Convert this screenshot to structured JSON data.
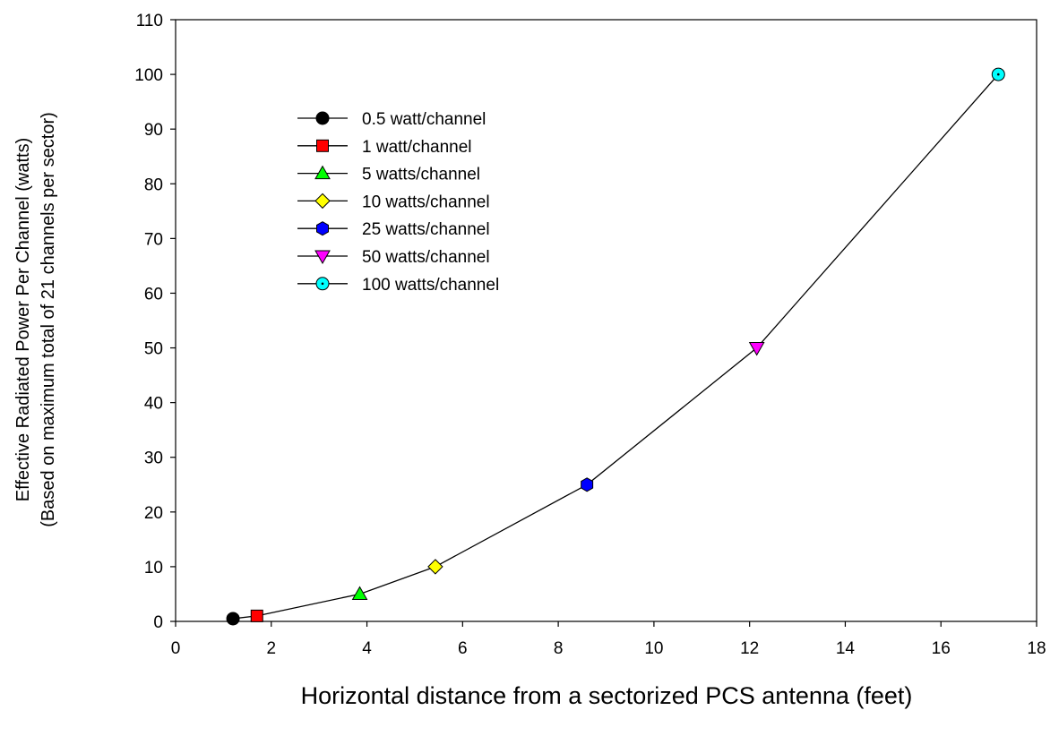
{
  "chart_data": {
    "type": "line",
    "title": "",
    "xlabel": "Horizontal distance from a sectorized PCS antenna (feet)",
    "ylabel": [
      "Effective Radiated Power Per Channel (watts)",
      "(Based on maximum total of 21 channels per sector)"
    ],
    "xlim": [
      0,
      18
    ],
    "ylim": [
      0,
      110
    ],
    "xticks": [
      0,
      2,
      4,
      6,
      8,
      10,
      12,
      14,
      16,
      18
    ],
    "yticks": [
      0,
      10,
      20,
      30,
      40,
      50,
      60,
      70,
      80,
      90,
      100,
      110
    ],
    "grid": false,
    "legend_position": "upper-left",
    "line_color": "#000000",
    "points": [
      {
        "label": "0.5 watt/channel",
        "x": 1.2,
        "y": 0.5,
        "marker": "circle",
        "color": "#000000"
      },
      {
        "label": "1 watt/channel",
        "x": 1.7,
        "y": 1,
        "marker": "square",
        "color": "#ff0000"
      },
      {
        "label": "5 watts/channel",
        "x": 3.85,
        "y": 5,
        "marker": "triangle-up",
        "color": "#00ff00"
      },
      {
        "label": "10 watts/channel",
        "x": 5.43,
        "y": 10,
        "marker": "diamond",
        "color": "#ffff00"
      },
      {
        "label": "25 watts/channel",
        "x": 8.6,
        "y": 25,
        "marker": "hexagon",
        "color": "#0000ff"
      },
      {
        "label": "50 watts/channel",
        "x": 12.15,
        "y": 50,
        "marker": "triangle-down",
        "color": "#ff00ff"
      },
      {
        "label": "100 watts/channel",
        "x": 17.2,
        "y": 100,
        "marker": "dotted-circle",
        "color": "#00ffff"
      }
    ]
  }
}
